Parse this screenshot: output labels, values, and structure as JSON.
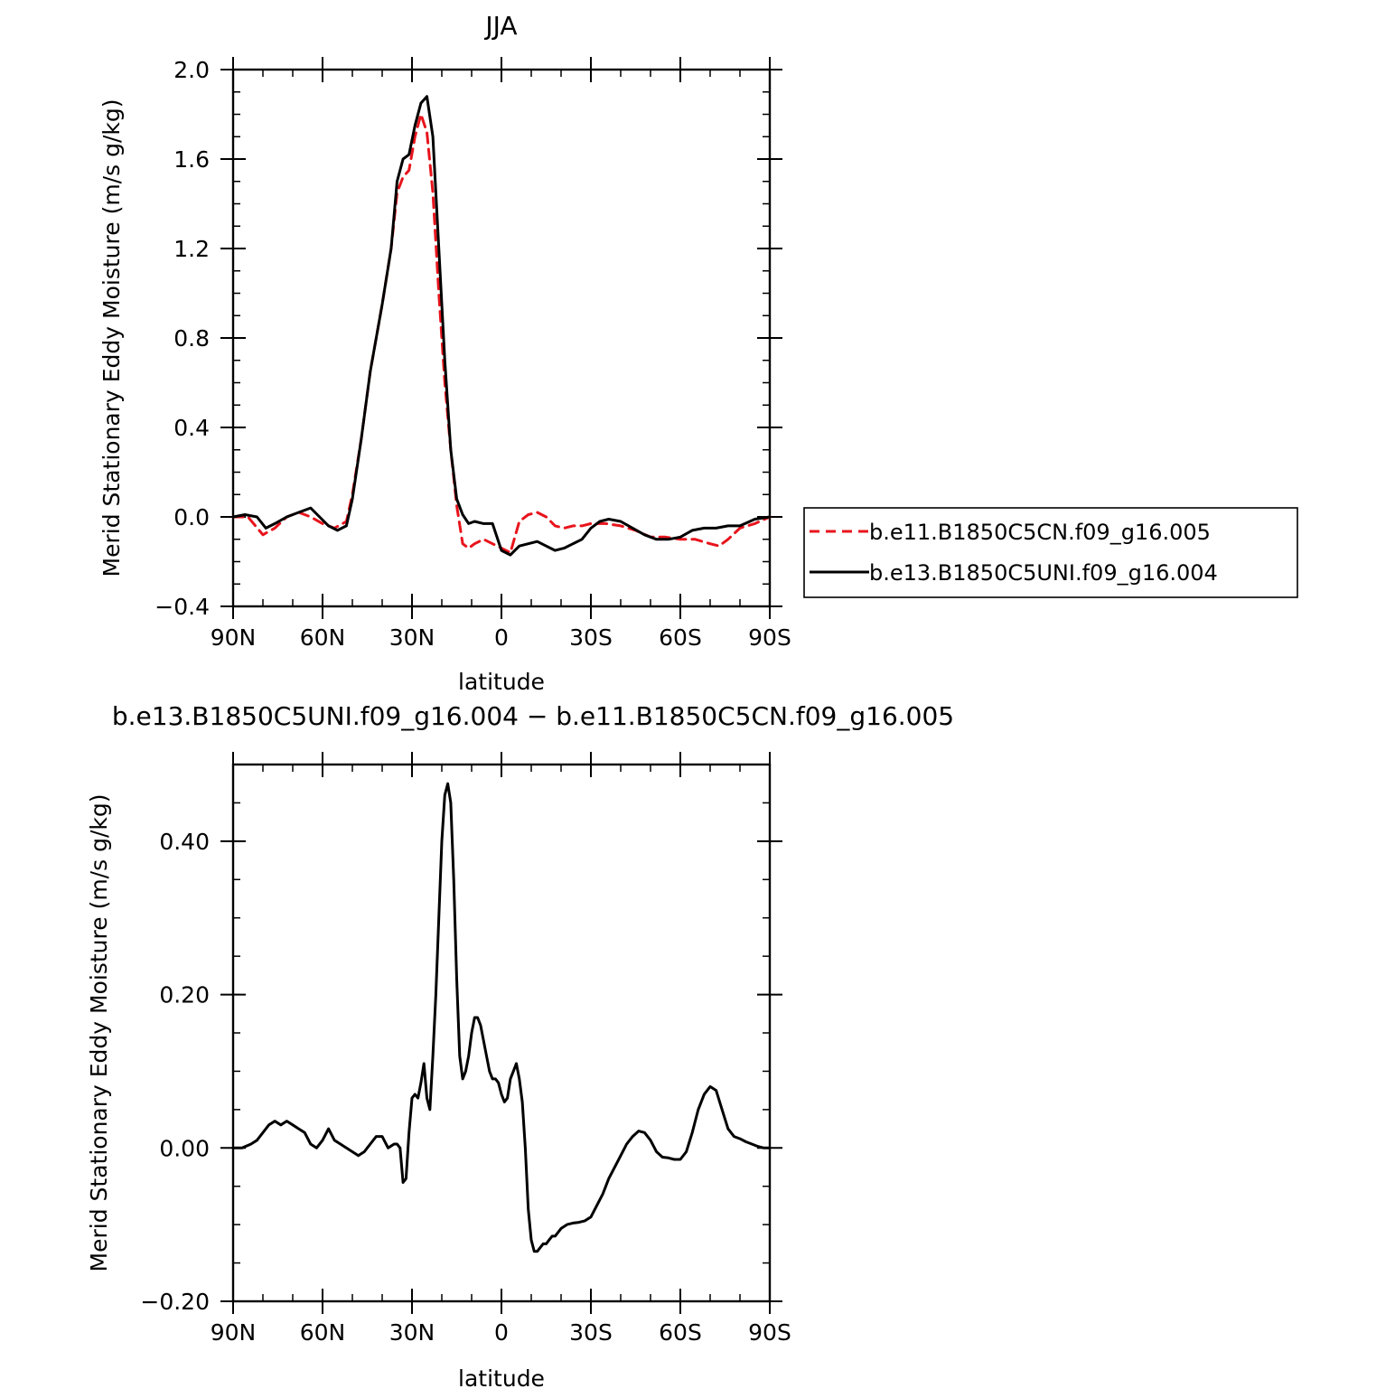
{
  "chart_data": [
    {
      "type": "line",
      "title": "JJA",
      "xlabel": "latitude",
      "ylabel": "Merid Stationary Eddy Moisture (m/s g/kg)",
      "xlim": [
        90,
        -90
      ],
      "ylim": [
        -0.4,
        2.0
      ],
      "x_ticks": [
        90,
        60,
        30,
        0,
        -30,
        -60,
        -90
      ],
      "x_tick_labels": [
        "90N",
        "60N",
        "30N",
        "0",
        "30S",
        "60S",
        "90S"
      ],
      "y_ticks": [
        -0.4,
        0.0,
        0.4,
        0.8,
        1.2,
        1.6,
        2.0
      ],
      "y_tick_labels": [
        "−0.4",
        "0.0",
        "0.4",
        "0.8",
        "1.2",
        "1.6",
        "2.0"
      ],
      "legend_position": "right",
      "series": [
        {
          "name": "b.e11.B1850C5CN.f09_g16.005",
          "color": "#e8141c",
          "dash": "dashed",
          "x": [
            90,
            85,
            80,
            76,
            72,
            68,
            64,
            60,
            56,
            52,
            50,
            47,
            44,
            40,
            37,
            35,
            33,
            31,
            29,
            27,
            25,
            23,
            21,
            19,
            17,
            15,
            13,
            11,
            9,
            6,
            3,
            0,
            -3,
            -6,
            -9,
            -12,
            -15,
            -18,
            -21,
            -24,
            -27,
            -30,
            -35,
            -40,
            -45,
            -50,
            -55,
            -60,
            -65,
            -70,
            -73,
            -76,
            -80,
            -85,
            -90
          ],
          "y": [
            0.0,
            0.0,
            -0.08,
            -0.05,
            0.0,
            0.02,
            0.0,
            -0.03,
            -0.05,
            -0.02,
            0.1,
            0.35,
            0.65,
            0.95,
            1.2,
            1.45,
            1.52,
            1.55,
            1.7,
            1.8,
            1.72,
            1.45,
            1.0,
            0.6,
            0.3,
            0.05,
            -0.12,
            -0.14,
            -0.12,
            -0.1,
            -0.12,
            -0.14,
            -0.16,
            -0.02,
            0.01,
            0.02,
            0.0,
            -0.04,
            -0.05,
            -0.04,
            -0.04,
            -0.03,
            -0.03,
            -0.04,
            -0.06,
            -0.09,
            -0.09,
            -0.1,
            -0.1,
            -0.12,
            -0.13,
            -0.1,
            -0.05,
            -0.03,
            0.0
          ]
        },
        {
          "name": "b.e13.B1850C5UNI.f09_g16.004",
          "color": "#000000",
          "dash": "solid",
          "x": [
            90,
            86,
            82,
            79,
            76,
            72,
            68,
            64,
            61,
            58,
            55,
            52,
            50,
            47,
            44,
            40,
            37,
            35,
            33,
            31,
            29,
            27,
            25,
            23,
            21,
            19,
            17,
            15,
            13,
            11,
            9,
            6,
            3,
            0,
            -3,
            -6,
            -9,
            -12,
            -15,
            -18,
            -21,
            -24,
            -27,
            -30,
            -33,
            -36,
            -40,
            -44,
            -48,
            -52,
            -56,
            -60,
            -64,
            -68,
            -72,
            -76,
            -80,
            -85,
            -90
          ],
          "y": [
            0.0,
            0.01,
            0.0,
            -0.05,
            -0.03,
            0.0,
            0.02,
            0.04,
            0.0,
            -0.04,
            -0.06,
            -0.04,
            0.08,
            0.35,
            0.65,
            0.95,
            1.2,
            1.5,
            1.6,
            1.62,
            1.75,
            1.85,
            1.88,
            1.7,
            1.2,
            0.7,
            0.3,
            0.08,
            0.01,
            -0.03,
            -0.02,
            -0.03,
            -0.03,
            -0.15,
            -0.17,
            -0.13,
            -0.12,
            -0.11,
            -0.13,
            -0.15,
            -0.14,
            -0.12,
            -0.1,
            -0.05,
            -0.02,
            -0.01,
            -0.02,
            -0.05,
            -0.08,
            -0.1,
            -0.1,
            -0.09,
            -0.06,
            -0.05,
            -0.05,
            -0.04,
            -0.04,
            -0.01,
            0.0
          ]
        }
      ]
    },
    {
      "type": "line",
      "title": "b.e13.B1850C5UNI.f09_g16.004 − b.e11.B1850C5CN.f09_g16.005",
      "xlabel": "latitude",
      "ylabel": "Merid Stationary Eddy Moisture (m/s g/kg)",
      "xlim": [
        90,
        -90
      ],
      "ylim": [
        -0.2,
        0.5
      ],
      "x_ticks": [
        90,
        60,
        30,
        0,
        -30,
        -60,
        -90
      ],
      "x_tick_labels": [
        "90N",
        "60N",
        "30N",
        "0",
        "30S",
        "60S",
        "90S"
      ],
      "y_ticks": [
        -0.2,
        0.0,
        0.2,
        0.4
      ],
      "y_tick_labels": [
        "−0.20",
        "0.00",
        "0.20",
        "0.40"
      ],
      "series": [
        {
          "color": "#000000",
          "dash": "solid",
          "x": [
            90,
            87,
            84,
            82,
            80,
            78,
            76,
            74,
            72,
            70,
            68,
            66,
            64,
            62,
            60,
            58,
            56,
            54,
            52,
            50,
            48,
            46,
            44,
            42,
            40,
            38,
            36,
            35,
            34,
            33,
            32,
            31,
            30,
            29,
            28,
            27,
            26,
            25,
            24,
            23,
            22,
            21,
            20,
            19,
            18,
            17,
            16,
            15,
            14,
            13,
            12,
            11,
            10,
            9,
            8,
            7,
            6,
            5,
            4,
            3,
            2,
            1,
            0,
            -1,
            -2,
            -3,
            -4,
            -5,
            -6,
            -7,
            -8,
            -9,
            -10,
            -11,
            -12,
            -13,
            -14,
            -15,
            -16,
            -17,
            -18,
            -20,
            -22,
            -24,
            -26,
            -28,
            -30,
            -32,
            -34,
            -36,
            -38,
            -40,
            -42,
            -44,
            -46,
            -48,
            -50,
            -52,
            -54,
            -56,
            -58,
            -60,
            -62,
            -64,
            -66,
            -68,
            -70,
            -72,
            -74,
            -76,
            -78,
            -80,
            -82,
            -84,
            -86,
            -88,
            -90
          ],
          "y": [
            0.0,
            0.0,
            0.005,
            0.01,
            0.02,
            0.03,
            0.035,
            0.03,
            0.035,
            0.03,
            0.025,
            0.02,
            0.005,
            0.0,
            0.01,
            0.025,
            0.01,
            0.005,
            0.0,
            -0.005,
            -0.01,
            -0.005,
            0.005,
            0.015,
            0.015,
            0.0,
            0.005,
            0.005,
            0.0,
            -0.045,
            -0.04,
            0.02,
            0.065,
            0.07,
            0.065,
            0.085,
            0.11,
            0.065,
            0.05,
            0.12,
            0.2,
            0.3,
            0.4,
            0.46,
            0.475,
            0.45,
            0.35,
            0.22,
            0.12,
            0.09,
            0.1,
            0.12,
            0.15,
            0.17,
            0.17,
            0.16,
            0.14,
            0.12,
            0.1,
            0.09,
            0.09,
            0.085,
            0.07,
            0.06,
            0.065,
            0.09,
            0.1,
            0.11,
            0.09,
            0.06,
            0.0,
            -0.08,
            -0.12,
            -0.135,
            -0.135,
            -0.13,
            -0.125,
            -0.125,
            -0.12,
            -0.115,
            -0.115,
            -0.105,
            -0.1,
            -0.098,
            -0.097,
            -0.095,
            -0.09,
            -0.075,
            -0.06,
            -0.04,
            -0.025,
            -0.01,
            0.005,
            0.015,
            0.022,
            0.02,
            0.01,
            -0.005,
            -0.012,
            -0.013,
            -0.015,
            -0.015,
            -0.005,
            0.02,
            0.05,
            0.07,
            0.08,
            0.075,
            0.05,
            0.025,
            0.015,
            0.012,
            0.008,
            0.005,
            0.002,
            0.0,
            0.0
          ]
        }
      ]
    }
  ]
}
